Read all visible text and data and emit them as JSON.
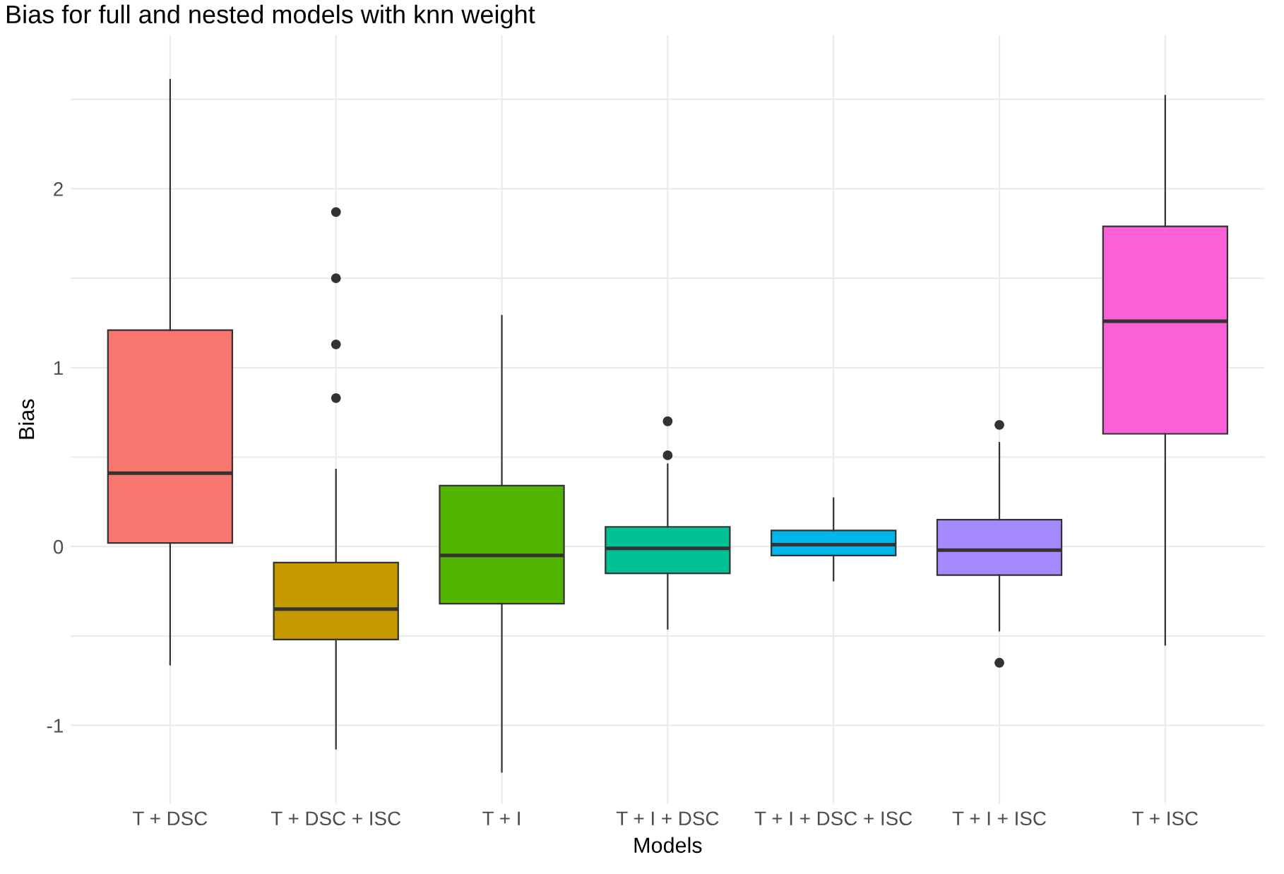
{
  "chart_data": {
    "type": "box",
    "title": "Bias for full and nested models with knn weight",
    "xlabel": "Models",
    "ylabel": "Bias",
    "categories": [
      "T + DSC",
      "T + DSC + ISC",
      "T + I",
      "T + I + DSC",
      "T + I + DSC + ISC",
      "T + I + ISC",
      "T + ISC"
    ],
    "colors": [
      "#f8766d",
      "#c49a00",
      "#53b400",
      "#00c094",
      "#00b6eb",
      "#a58aff",
      "#fb61d7"
    ],
    "boxes": [
      {
        "low": -0.66,
        "q1": 0.02,
        "median": 0.41,
        "q3": 1.21,
        "high": 2.61
      },
      {
        "low": -1.13,
        "q1": -0.52,
        "median": -0.35,
        "q3": -0.09,
        "high": 0.43,
        "outliers": [
          1.87,
          1.5,
          1.13,
          0.83
        ]
      },
      {
        "low": -1.26,
        "q1": -0.32,
        "median": -0.05,
        "q3": 0.34,
        "high": 1.29
      },
      {
        "low": -0.46,
        "q1": -0.15,
        "median": -0.01,
        "q3": 0.11,
        "high": 0.46,
        "outliers": [
          0.7,
          0.51
        ]
      },
      {
        "low": -0.19,
        "q1": -0.05,
        "median": 0.01,
        "q3": 0.09,
        "high": 0.27
      },
      {
        "low": -0.47,
        "q1": -0.16,
        "median": -0.02,
        "q3": 0.15,
        "high": 0.58,
        "outliers": [
          0.68,
          -0.65
        ]
      },
      {
        "low": -0.55,
        "q1": 0.63,
        "median": 1.26,
        "q3": 1.79,
        "high": 2.52
      }
    ],
    "ylim": [
      -1.44,
      2.86
    ],
    "yticks": [
      -1,
      {
        "value": -0.5,
        "label": null
      },
      0,
      {
        "value": 0.5,
        "label": null
      },
      1,
      {
        "value": 1.5,
        "label": null
      },
      2,
      {
        "value": 2.5,
        "label": null
      }
    ],
    "grid": true,
    "legend": false
  }
}
